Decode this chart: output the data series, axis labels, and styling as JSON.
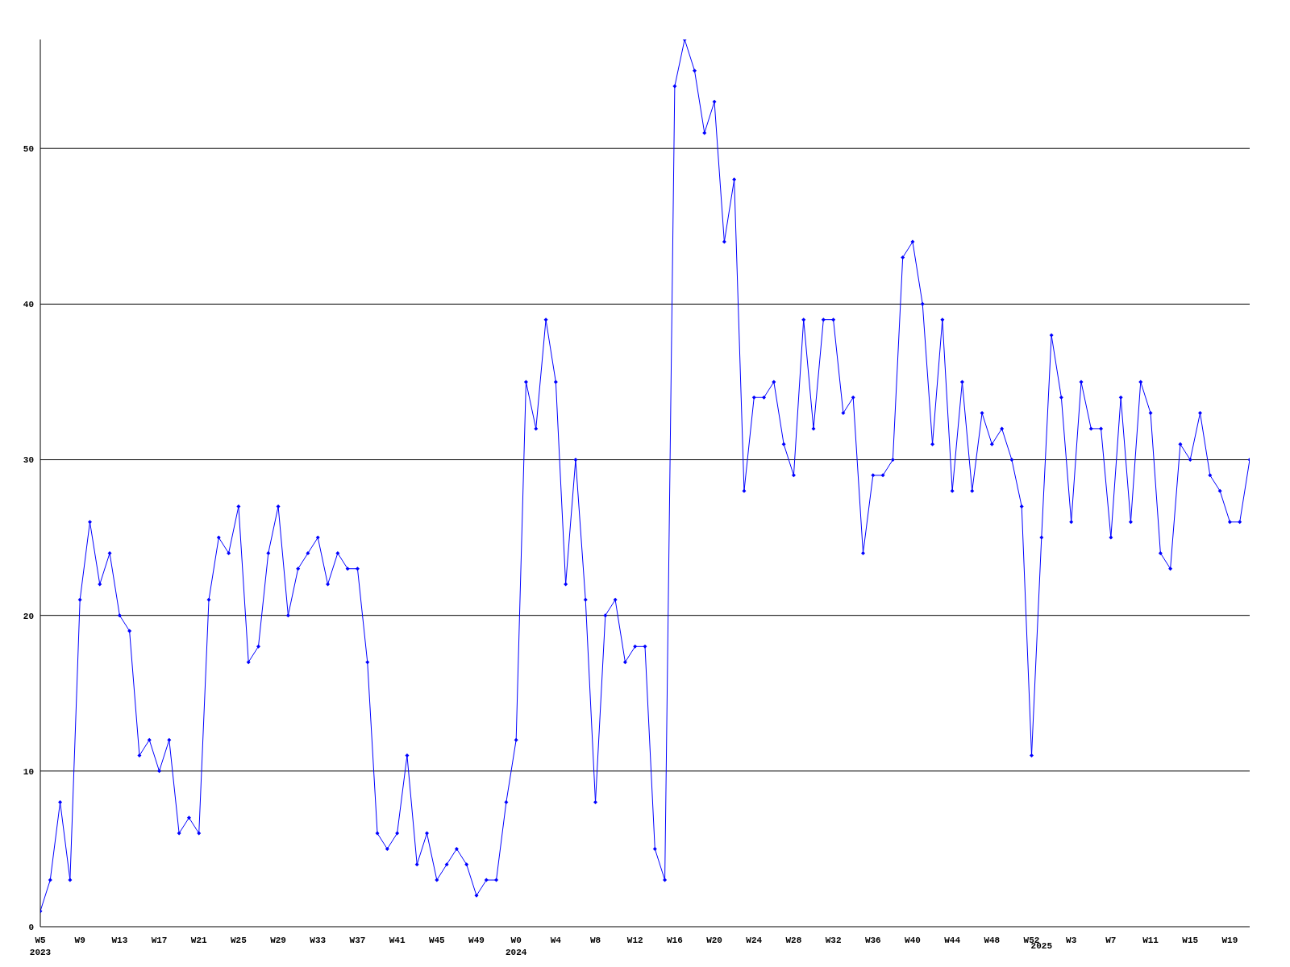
{
  "chart_data": {
    "type": "line",
    "categories": [
      "W5\n2023",
      null,
      null,
      null,
      "W9",
      null,
      null,
      null,
      "W13",
      null,
      null,
      null,
      "W17",
      null,
      null,
      null,
      "W21",
      null,
      null,
      null,
      "W25",
      null,
      null,
      null,
      "W29",
      null,
      null,
      null,
      "W33",
      null,
      null,
      null,
      "W37",
      null,
      null,
      null,
      "W41",
      null,
      null,
      null,
      "W45",
      null,
      null,
      null,
      "W49",
      null,
      null,
      null,
      "W0\n2024",
      null,
      null,
      null,
      "W4",
      null,
      null,
      null,
      "W8",
      null,
      null,
      null,
      "W12",
      null,
      null,
      null,
      "W16",
      null,
      null,
      null,
      "W20",
      null,
      null,
      null,
      "W24",
      null,
      null,
      null,
      "W28",
      null,
      null,
      null,
      "W32",
      null,
      null,
      null,
      "W36",
      null,
      null,
      null,
      "W40",
      null,
      null,
      null,
      "W44",
      null,
      null,
      null,
      "W48",
      null,
      null,
      null,
      "W52",
      "\n2025",
      null,
      null,
      "W3",
      null,
      null,
      null,
      "W7",
      null,
      null,
      null,
      "W11",
      null,
      null,
      null,
      "W15",
      null,
      null,
      null,
      "W19",
      null,
      null
    ],
    "series": [
      {
        "color": "#0000ff",
        "values": [
          1,
          3,
          8,
          3,
          21,
          26,
          22,
          24,
          20,
          19,
          11,
          12,
          10,
          12,
          6,
          7,
          6,
          21,
          25,
          24,
          27,
          17,
          18,
          24,
          27,
          20,
          23,
          24,
          25,
          22,
          24,
          23,
          23,
          17,
          6,
          5,
          6,
          11,
          4,
          6,
          3,
          4,
          5,
          4,
          2,
          3,
          3,
          8,
          12,
          35,
          32,
          39,
          35,
          22,
          30,
          21,
          8,
          20,
          21,
          17,
          18,
          18,
          5,
          3,
          54,
          57,
          55,
          51,
          53,
          44,
          48,
          28,
          34,
          34,
          35,
          31,
          29,
          39,
          32,
          39,
          39,
          33,
          34,
          24,
          29,
          29,
          30,
          43,
          44,
          40,
          31,
          39,
          28,
          35,
          28,
          33,
          31,
          32,
          30,
          27,
          11,
          25,
          38,
          34,
          26,
          35,
          32,
          32,
          25,
          34,
          26,
          35,
          33,
          24,
          23,
          31,
          30,
          33,
          29,
          28,
          26,
          26,
          30
        ]
      }
    ],
    "ylim": [
      0,
      57
    ],
    "yticks": [
      0,
      10,
      20,
      30,
      40,
      50
    ],
    "grid": "y",
    "marker": "diamond",
    "line_style": "solid"
  }
}
